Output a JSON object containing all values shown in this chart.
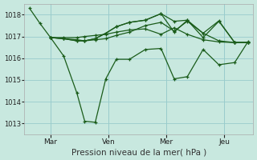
{
  "xlabel": "Pression niveau de la mer( hPa )",
  "bg_color": "#c8e8df",
  "grid_color": "#99cccc",
  "line_color": "#1a5c1a",
  "ylim": [
    1012.5,
    1018.5
  ],
  "yticks": [
    1013,
    1014,
    1015,
    1016,
    1017,
    1018
  ],
  "xtick_labels": [
    "Mar",
    "Ven",
    "Mer",
    "Jeu"
  ],
  "xtick_positions": [
    8,
    30,
    52,
    74
  ],
  "lines": [
    {
      "x": [
        0,
        4,
        8,
        13,
        18,
        21,
        25,
        29,
        33,
        38,
        44,
        50,
        55,
        60,
        66,
        72,
        78,
        83
      ],
      "y": [
        1018.3,
        1017.6,
        1016.95,
        1016.1,
        1014.4,
        1013.1,
        1013.05,
        1015.05,
        1015.95,
        1015.95,
        1016.4,
        1016.45,
        1015.05,
        1015.15,
        1016.4,
        1015.7,
        1015.8,
        1016.75
      ]
    },
    {
      "x": [
        8,
        13,
        18,
        21,
        25,
        29,
        33,
        38,
        44,
        50,
        55,
        60,
        66,
        72,
        78,
        83
      ],
      "y": [
        1016.95,
        1016.95,
        1016.95,
        1017.0,
        1017.05,
        1017.1,
        1017.2,
        1017.3,
        1017.35,
        1017.1,
        1017.4,
        1017.1,
        1016.85,
        1016.75,
        1016.72,
        1016.72
      ]
    },
    {
      "x": [
        8,
        13,
        18,
        21,
        25,
        29,
        33,
        38,
        44,
        50,
        55,
        60,
        66,
        72,
        78,
        83
      ],
      "y": [
        1016.95,
        1016.9,
        1016.85,
        1016.8,
        1016.85,
        1016.9,
        1017.05,
        1017.2,
        1017.5,
        1017.65,
        1017.25,
        1017.7,
        1017.15,
        1017.72,
        1016.72,
        1016.72
      ]
    },
    {
      "x": [
        8,
        13,
        18,
        21,
        25,
        29,
        33,
        38,
        44,
        50,
        55,
        60,
        66,
        72,
        78,
        83
      ],
      "y": [
        1016.95,
        1016.9,
        1016.8,
        1016.8,
        1016.9,
        1017.15,
        1017.45,
        1017.65,
        1017.75,
        1018.05,
        1017.2,
        1017.75,
        1017.15,
        1016.8,
        1016.72,
        1016.72
      ]
    },
    {
      "x": [
        8,
        13,
        18,
        21,
        25,
        29,
        33,
        38,
        44,
        50,
        55,
        60,
        66,
        72,
        78,
        83
      ],
      "y": [
        1016.95,
        1016.9,
        1016.8,
        1016.8,
        1016.9,
        1017.15,
        1017.45,
        1017.65,
        1017.75,
        1018.05,
        1017.7,
        1017.75,
        1016.95,
        1017.7,
        1016.72,
        1016.72
      ]
    }
  ],
  "xlim": [
    -2,
    85
  ],
  "vlines": [
    8,
    30,
    52,
    74
  ]
}
